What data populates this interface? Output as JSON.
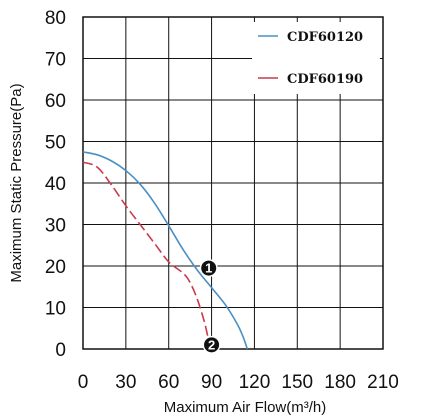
{
  "chart_data": {
    "type": "line",
    "title": "",
    "xlabel": "Maximum Air Flow(m³/h)",
    "ylabel": "Maximum Static Pressure(Pa)",
    "xlim": [
      0,
      210
    ],
    "ylim": [
      0,
      80
    ],
    "xticks": [
      "0",
      "30",
      "60",
      "90",
      "120",
      "150",
      "180",
      "210"
    ],
    "yticks": [
      "0",
      "10",
      "20",
      "30",
      "40",
      "50",
      "60",
      "70",
      "80"
    ],
    "grid": true,
    "legend_position": "top-right",
    "series": [
      {
        "name": "CDF60120",
        "color": "#4a8fc4",
        "style": "solid",
        "x": [
          0,
          10,
          20,
          30,
          40,
          50,
          60,
          70,
          80,
          90,
          100,
          108,
          112,
          115
        ],
        "y": [
          47.5,
          46.8,
          45.3,
          43.0,
          39.7,
          35.2,
          29.7,
          24.0,
          19.0,
          14.8,
          10.5,
          6.0,
          3.0,
          0
        ]
      },
      {
        "name": "CDF60190",
        "color": "#c83a4c",
        "style": "dashed",
        "x": [
          0,
          10,
          20,
          30,
          40,
          50,
          60,
          70,
          75,
          80,
          85,
          88
        ],
        "y": [
          45.0,
          43.8,
          39.5,
          34.5,
          30.0,
          25.5,
          21.0,
          18.3,
          16.0,
          12.0,
          6.5,
          2.0
        ]
      }
    ],
    "markers": [
      {
        "label": "1",
        "x": 88,
        "y": 19.5
      },
      {
        "label": "2",
        "x": 90,
        "y": 1.0
      }
    ]
  }
}
